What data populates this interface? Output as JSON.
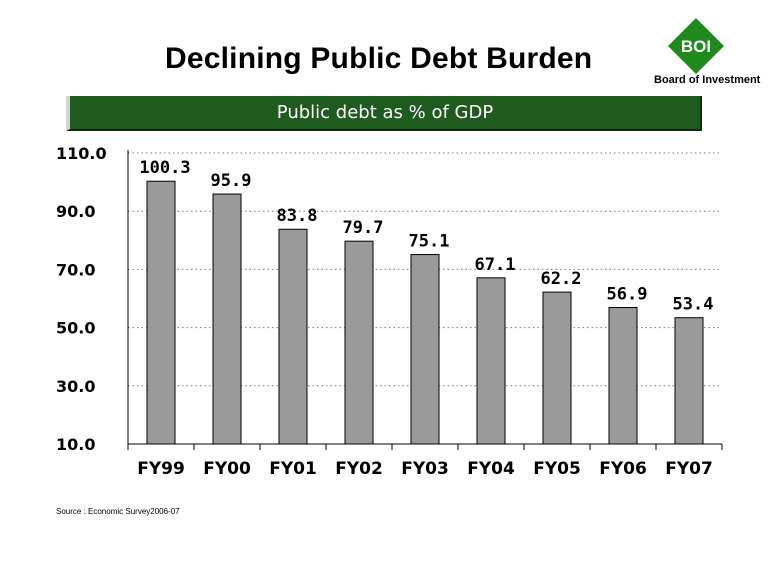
{
  "slide": {
    "title": "Declining Public Debt Burden",
    "source": "Source : Economic Survey2006-07"
  },
  "logo": {
    "text": "BOI",
    "caption": "Board of Investment",
    "color": "#1e8a1e"
  },
  "banner": {
    "text": "Public debt as % of GDP",
    "color": "#1f5a1f"
  },
  "chart_data": {
    "type": "bar",
    "title": "Public debt as % of GDP",
    "categories": [
      "FY99",
      "FY00",
      "FY01",
      "FY02",
      "FY03",
      "FY04",
      "FY05",
      "FY06",
      "FY07"
    ],
    "values": [
      100.3,
      95.9,
      83.8,
      79.7,
      75.1,
      67.1,
      62.2,
      56.9,
      53.4
    ],
    "data_labels": [
      "100.3",
      "95.9",
      "83.8",
      "79.7",
      "75.1",
      "67.1",
      "62.2",
      "56.9",
      "53.4"
    ],
    "y_ticks": [
      "110.0",
      "90.0",
      "70.0",
      "50.0",
      "30.0",
      "10.0"
    ],
    "ylim": [
      10,
      110
    ],
    "grid": true,
    "bar_color": "#9a9a9a",
    "xlabel": "",
    "ylabel": ""
  }
}
